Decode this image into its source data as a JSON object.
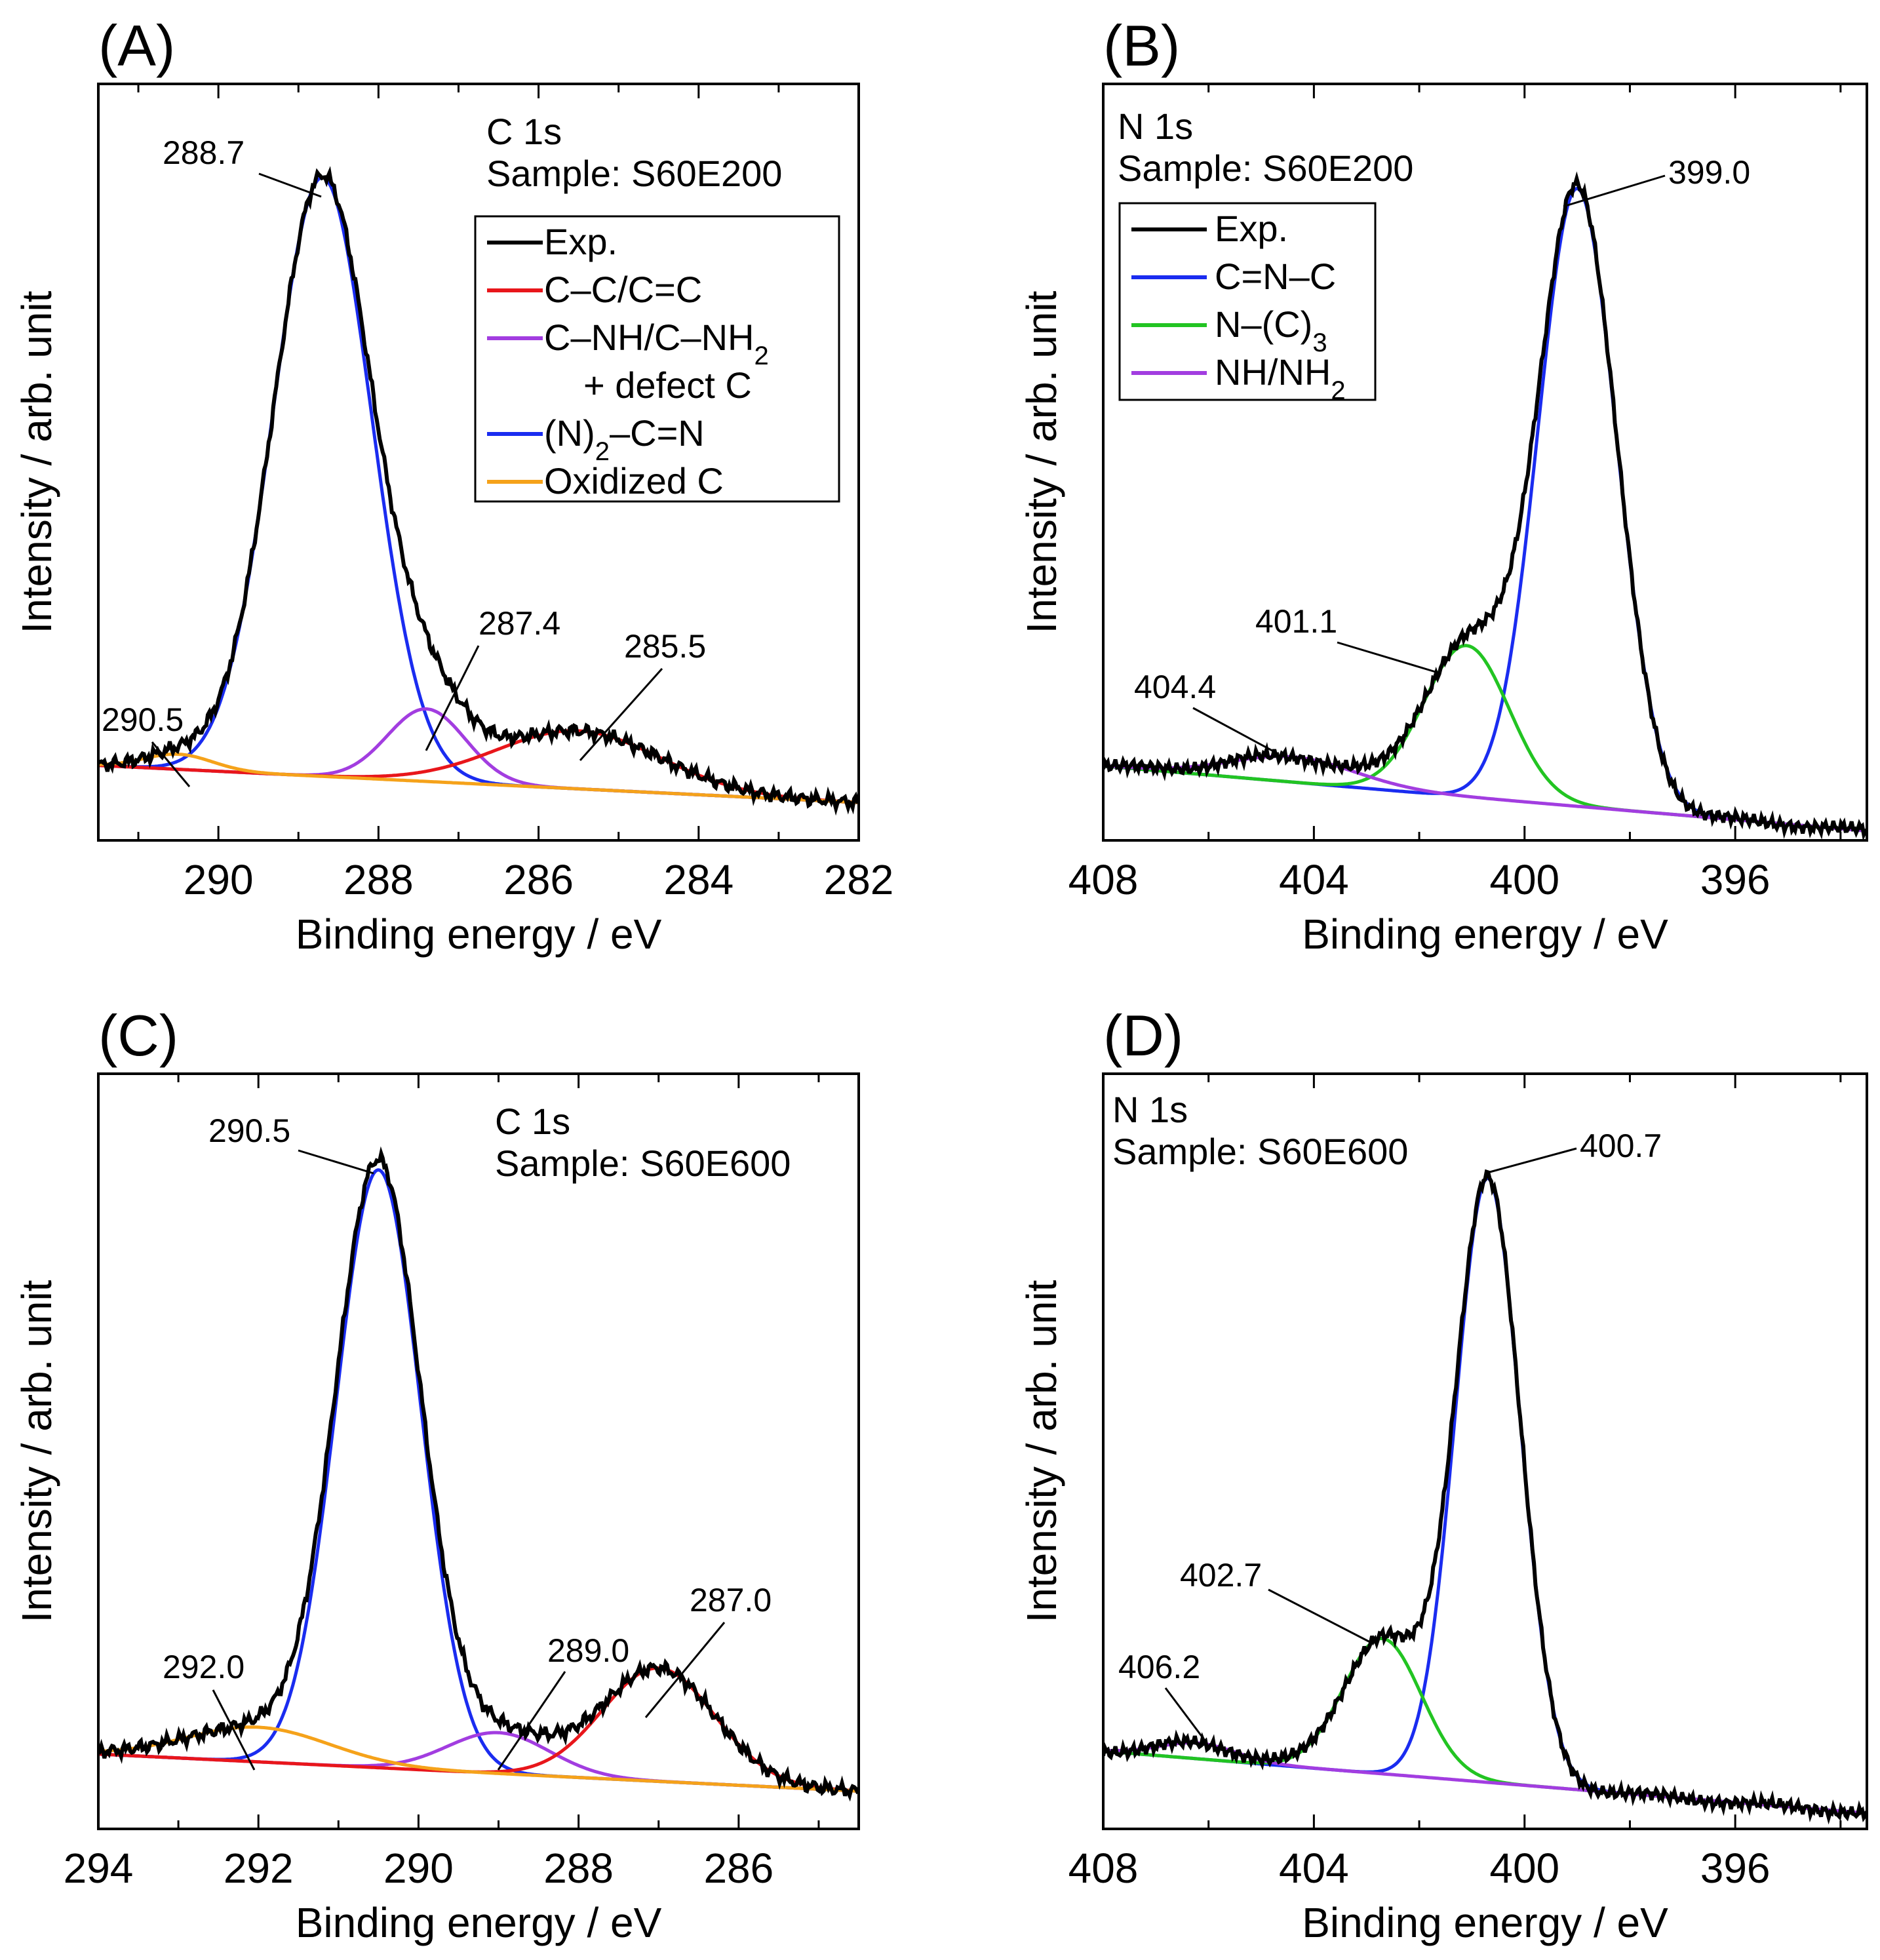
{
  "figure": {
    "colors": {
      "exp": "#000000",
      "red": "#e8161b",
      "purple": "#a23de0",
      "blue": "#1a2cf0",
      "orange": "#f5a21a",
      "green": "#22c422"
    }
  },
  "chart_data": [
    {
      "panel": "(A)",
      "type": "line",
      "xlabel": "Binding energy / eV",
      "ylabel": "Intensity / arb. unit",
      "xlim": [
        291.5,
        282.0
      ],
      "ylim": [
        0,
        1.2
      ],
      "xticks": [
        "290",
        "288",
        "286",
        "284",
        "282"
      ],
      "info_lines": [
        "C 1s",
        "Sample: S60E200"
      ],
      "legend": [
        {
          "label": "Exp.",
          "color": "#000000"
        },
        {
          "label": "C–C/C=C",
          "color": "#e8161b"
        },
        {
          "label": "C–NH/C–NH",
          "sub": "2",
          "color": "#a23de0"
        },
        {
          "label": "+ defect C",
          "color": "",
          "indent": true
        },
        {
          "label": "(N)",
          "sub": "2",
          "tail": "–C=N",
          "color": "#1a2cf0"
        },
        {
          "label": "Oxidized C",
          "color": "#f5a21a"
        }
      ],
      "background": {
        "y0": 0.06,
        "slope": 0.0062,
        "x_ref": 282.0
      },
      "components": [
        {
          "name": "(N)2–C=N",
          "color": "#1a2cf0",
          "center": 288.7,
          "amplitude": 0.95,
          "fwhm": 1.45
        },
        {
          "name": "C–NH/C–NH2 + defect C",
          "color": "#a23de0",
          "center": 287.4,
          "amplitude": 0.115,
          "fwhm": 1.15
        },
        {
          "name": "C–C/C=C",
          "color": "#e8161b",
          "center": 285.5,
          "amplitude": 0.092,
          "fwhm": 2.4
        },
        {
          "name": "Oxidized C",
          "color": "#f5a21a",
          "center": 290.5,
          "amplitude": 0.024,
          "fwhm": 1.0
        }
      ],
      "annotations": [
        "290.5",
        "288.7",
        "287.4",
        "285.5"
      ]
    },
    {
      "panel": "(B)",
      "type": "line",
      "xlabel": "Binding energy / eV",
      "ylabel": "Intensity / arb. unit",
      "xlim": [
        408.0,
        393.5
      ],
      "ylim": [
        0,
        1.2
      ],
      "xticks": [
        "408",
        "404",
        "400",
        "396"
      ],
      "info_lines": [
        "N 1s",
        "Sample: S60E200"
      ],
      "legend": [
        {
          "label": "Exp.",
          "color": "#000000"
        },
        {
          "label": "C=N–C",
          "color": "#1a2cf0"
        },
        {
          "label": "N–(C)",
          "sub": "3",
          "color": "#22c422"
        },
        {
          "label": "NH/NH",
          "sub": "2",
          "color": "#a23de0"
        }
      ],
      "background": {
        "y0": 0.015,
        "slope": 0.0071,
        "x_ref": 393.5
      },
      "components": [
        {
          "name": "C=N–C",
          "color": "#1a2cf0",
          "center": 399.0,
          "amplitude": 0.98,
          "fwhm": 1.75
        },
        {
          "name": "N–(C)3",
          "color": "#22c422",
          "center": 401.1,
          "amplitude": 0.24,
          "fwhm": 1.9
        },
        {
          "name": "NH/NH2",
          "color": "#a23de0",
          "center": 404.4,
          "amplitude": 0.04,
          "fwhm": 2.8
        }
      ],
      "annotations": [
        "404.4",
        "401.1",
        "399.0"
      ]
    },
    {
      "panel": "(C)",
      "type": "line",
      "xlabel": "Binding energy / eV",
      "ylabel": "Intensity / arb. unit",
      "xlim": [
        294.0,
        284.5
      ],
      "ylim": [
        0,
        1.2
      ],
      "xticks": [
        "294",
        "292",
        "290",
        "288",
        "286"
      ],
      "info_lines": [
        "C 1s",
        "Sample: S60E600"
      ],
      "legend": [],
      "background": {
        "y0": 0.06,
        "slope": 0.0062,
        "x_ref": 284.5
      },
      "components": [
        {
          "name": "(N)2–C=N",
          "color": "#1a2cf0",
          "center": 290.5,
          "amplitude": 0.95,
          "fwhm": 1.25
        },
        {
          "name": "C–NH/C–NH2 + defect C",
          "color": "#a23de0",
          "center": 289.0,
          "amplitude": 0.065,
          "fwhm": 1.5
        },
        {
          "name": "C–C/C=C",
          "color": "#e8161b",
          "center": 287.0,
          "amplitude": 0.18,
          "fwhm": 1.65
        },
        {
          "name": "Oxidized C",
          "color": "#f5a21a",
          "center": 292.0,
          "amplitude": 0.055,
          "fwhm": 2.1
        }
      ],
      "annotations": [
        "292.0",
        "290.5",
        "289.0",
        "287.0"
      ]
    },
    {
      "panel": "(D)",
      "type": "line",
      "xlabel": "Binding energy / eV",
      "ylabel": "Intensity / arb. unit",
      "xlim": [
        408.0,
        393.5
      ],
      "ylim": [
        0,
        1.2
      ],
      "xticks": [
        "408",
        "404",
        "400",
        "396"
      ],
      "info_lines": [
        "N 1s",
        "Sample: S60E600"
      ],
      "legend": [],
      "background": {
        "y0": 0.025,
        "slope": 0.0068,
        "x_ref": 393.5
      },
      "components": [
        {
          "name": "C=N–C",
          "color": "#1a2cf0",
          "center": 400.7,
          "amplitude": 0.96,
          "fwhm": 1.45
        },
        {
          "name": "N–(C)3",
          "color": "#22c422",
          "center": 402.7,
          "amplitude": 0.215,
          "fwhm": 1.75
        },
        {
          "name": "NH/NH2",
          "color": "#a23de0",
          "center": 406.2,
          "amplitude": 0.025,
          "fwhm": 1.7
        }
      ],
      "annotations": [
        "406.2",
        "402.7",
        "400.7"
      ]
    }
  ]
}
